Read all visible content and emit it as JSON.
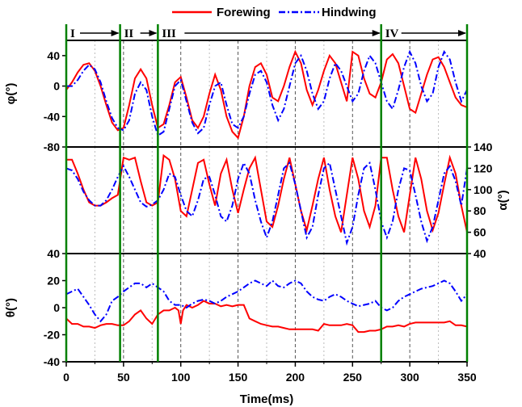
{
  "chart_data": {
    "type": "line",
    "xlabel": "Time(ms)",
    "xlim": [
      0,
      350
    ],
    "xticks": [
      "0",
      "50",
      "100",
      "150",
      "200",
      "250",
      "300",
      "350"
    ],
    "legend": {
      "placement": "top-center",
      "entries": [
        {
          "label": "Forewing",
          "color": "#ff0000",
          "style": "solid"
        },
        {
          "label": "Hindwing",
          "color": "#0000ff",
          "style": "dash-dot"
        }
      ]
    },
    "phases": {
      "labels": [
        "I",
        "II",
        "III",
        "IV"
      ],
      "boundaries_ms": [
        0,
        47,
        80,
        275,
        350
      ],
      "line_color": "#008000"
    },
    "panels": [
      {
        "id": "phi",
        "ylabel": "φ(°)",
        "axis_side": "left",
        "ylim": [
          -80,
          60
        ],
        "yticks": [
          "40",
          "0",
          "-40",
          "-80"
        ],
        "ytick_values": [
          40,
          0,
          -40,
          -80
        ],
        "series": [
          {
            "name": "Forewing",
            "x": [
              0,
              5,
              10,
              15,
              20,
              25,
              30,
              35,
              40,
              45,
              50,
              55,
              60,
              65,
              70,
              75,
              80,
              85,
              90,
              95,
              100,
              105,
              110,
              115,
              120,
              125,
              130,
              135,
              140,
              145,
              150,
              155,
              160,
              165,
              170,
              175,
              180,
              185,
              190,
              195,
              200,
              205,
              210,
              215,
              220,
              225,
              230,
              235,
              240,
              245,
              250,
              255,
              260,
              265,
              270,
              275,
              280,
              285,
              290,
              295,
              300,
              305,
              310,
              315,
              320,
              325,
              330,
              335,
              340,
              345,
              350
            ],
            "y": [
              -5,
              5,
              18,
              28,
              30,
              20,
              0,
              -25,
              -48,
              -58,
              -55,
              -25,
              10,
              22,
              10,
              -25,
              -55,
              -50,
              -25,
              5,
              12,
              -15,
              -45,
              -55,
              -40,
              -10,
              15,
              -5,
              -40,
              -60,
              -68,
              -40,
              0,
              25,
              30,
              15,
              -15,
              -20,
              0,
              25,
              45,
              30,
              -5,
              -25,
              -5,
              20,
              40,
              30,
              5,
              -20,
              45,
              40,
              10,
              -10,
              -15,
              5,
              35,
              42,
              30,
              0,
              -30,
              -35,
              -10,
              15,
              35,
              38,
              25,
              5,
              -15,
              -25,
              -28
            ]
          },
          {
            "name": "Hindwing",
            "x": [
              0,
              5,
              10,
              15,
              20,
              25,
              30,
              35,
              40,
              45,
              50,
              55,
              60,
              65,
              70,
              75,
              80,
              85,
              90,
              95,
              100,
              105,
              110,
              115,
              120,
              125,
              130,
              135,
              140,
              145,
              150,
              155,
              160,
              165,
              170,
              175,
              180,
              185,
              190,
              195,
              200,
              205,
              210,
              215,
              220,
              225,
              230,
              235,
              240,
              245,
              250,
              255,
              260,
              265,
              270,
              275,
              280,
              285,
              290,
              295,
              300,
              305,
              310,
              315,
              320,
              325,
              330,
              335,
              340,
              345,
              350
            ],
            "y": [
              0,
              0,
              8,
              20,
              28,
              22,
              5,
              -20,
              -42,
              -55,
              -58,
              -45,
              -10,
              5,
              -5,
              -40,
              -65,
              -60,
              -30,
              0,
              8,
              -20,
              -48,
              -62,
              -55,
              -25,
              0,
              5,
              -25,
              -50,
              -55,
              -40,
              -10,
              15,
              20,
              5,
              -25,
              -45,
              -30,
              0,
              30,
              40,
              20,
              -10,
              -30,
              -20,
              10,
              30,
              20,
              0,
              -20,
              -10,
              20,
              40,
              30,
              5,
              -20,
              -30,
              -5,
              25,
              45,
              30,
              0,
              -20,
              -10,
              25,
              45,
              35,
              5,
              -20,
              -5
            ]
          }
        ]
      },
      {
        "id": "alpha",
        "ylabel": "α(°)",
        "axis_side": "right",
        "ylim": [
          40,
          140
        ],
        "yticks": [
          "140",
          "120",
          "100",
          "80",
          "60",
          "40"
        ],
        "ytick_values": [
          140,
          120,
          100,
          80,
          60,
          40
        ],
        "series": [
          {
            "name": "Forewing",
            "x": [
              0,
              5,
              10,
              15,
              20,
              25,
              30,
              35,
              40,
              45,
              50,
              55,
              60,
              65,
              70,
              75,
              80,
              85,
              90,
              95,
              100,
              105,
              110,
              115,
              120,
              125,
              130,
              135,
              140,
              145,
              150,
              155,
              160,
              165,
              170,
              175,
              180,
              185,
              190,
              195,
              200,
              205,
              210,
              215,
              220,
              225,
              230,
              235,
              240,
              245,
              250,
              255,
              260,
              265,
              270,
              275,
              280,
              285,
              290,
              295,
              300,
              305,
              310,
              315,
              320,
              325,
              330,
              335,
              340,
              345,
              350
            ],
            "y": [
              128,
              128,
              115,
              100,
              88,
              85,
              85,
              88,
              92,
              95,
              130,
              128,
              130,
              108,
              88,
              85,
              88,
              132,
              128,
              110,
              80,
              75,
              100,
              125,
              128,
              105,
              85,
              115,
              128,
              100,
              78,
              100,
              120,
              130,
              100,
              70,
              65,
              85,
              110,
              130,
              105,
              80,
              62,
              85,
              110,
              130,
              100,
              75,
              60,
              95,
              130,
              110,
              80,
              65,
              85,
              130,
              130,
              100,
              75,
              60,
              95,
              130,
              110,
              80,
              62,
              78,
              105,
              130,
              115,
              85,
              60
            ]
          },
          {
            "name": "Hindwing",
            "x": [
              0,
              5,
              10,
              15,
              20,
              25,
              30,
              35,
              40,
              45,
              50,
              55,
              60,
              65,
              70,
              75,
              80,
              85,
              90,
              95,
              100,
              105,
              110,
              115,
              120,
              125,
              130,
              135,
              140,
              145,
              150,
              155,
              160,
              165,
              170,
              175,
              180,
              185,
              190,
              195,
              200,
              205,
              210,
              215,
              220,
              225,
              230,
              235,
              240,
              245,
              250,
              255,
              260,
              265,
              270,
              275,
              280,
              285,
              290,
              295,
              300,
              305,
              310,
              315,
              320,
              325,
              330,
              335,
              340,
              345,
              350
            ],
            "y": [
              120,
              118,
              110,
              98,
              90,
              85,
              85,
              90,
              100,
              112,
              122,
              112,
              100,
              88,
              84,
              86,
              90,
              100,
              115,
              112,
              95,
              80,
              75,
              90,
              110,
              112,
              95,
              75,
              70,
              85,
              110,
              125,
              115,
              90,
              70,
              55,
              70,
              95,
              120,
              125,
              105,
              80,
              55,
              65,
              95,
              120,
              125,
              100,
              75,
              50,
              65,
              95,
              120,
              125,
              100,
              70,
              55,
              70,
              100,
              120,
              118,
              95,
              70,
              52,
              65,
              90,
              115,
              122,
              108,
              85,
              120
            ]
          }
        ]
      },
      {
        "id": "theta",
        "ylabel": "θ(°)",
        "axis_side": "left",
        "ylim": [
          -40,
          40
        ],
        "yticks": [
          "40",
          "20",
          "0",
          "-20",
          "-40"
        ],
        "ytick_values": [
          40,
          20,
          0,
          -20,
          -40
        ],
        "series": [
          {
            "name": "Forewing",
            "x": [
              0,
              5,
              10,
              15,
              20,
              25,
              30,
              35,
              40,
              45,
              50,
              55,
              60,
              65,
              70,
              75,
              80,
              85,
              90,
              95,
              98,
              100,
              102,
              105,
              110,
              115,
              120,
              125,
              130,
              135,
              140,
              145,
              150,
              155,
              160,
              165,
              170,
              175,
              180,
              185,
              190,
              195,
              200,
              205,
              210,
              215,
              220,
              225,
              230,
              235,
              240,
              245,
              250,
              255,
              260,
              265,
              270,
              275,
              280,
              285,
              290,
              295,
              300,
              305,
              310,
              315,
              320,
              325,
              330,
              335,
              340,
              345,
              350
            ],
            "y": [
              -8,
              -12,
              -12,
              -14,
              -14,
              -15,
              -13,
              -12,
              -12,
              -13,
              -13,
              -10,
              -5,
              -2,
              -8,
              -12,
              -5,
              -2,
              -2,
              0,
              -2,
              -12,
              -2,
              2,
              0,
              2,
              5,
              3,
              3,
              1,
              2,
              1,
              2,
              2,
              -8,
              -10,
              -12,
              -13,
              -14,
              -14,
              -15,
              -16,
              -16,
              -16,
              -16,
              -16,
              -17,
              -12,
              -13,
              -13,
              -13,
              -12,
              -13,
              -18,
              -18,
              -17,
              -17,
              -16,
              -14,
              -14,
              -13,
              -14,
              -12,
              -11,
              -11,
              -11,
              -11,
              -11,
              -11,
              -10,
              -13,
              -13,
              -14
            ]
          },
          {
            "name": "Hindwing",
            "x": [
              0,
              5,
              10,
              15,
              20,
              25,
              30,
              35,
              40,
              45,
              50,
              55,
              60,
              65,
              70,
              75,
              80,
              85,
              90,
              95,
              100,
              105,
              110,
              115,
              120,
              125,
              130,
              135,
              140,
              145,
              150,
              155,
              160,
              165,
              170,
              175,
              180,
              185,
              190,
              195,
              200,
              205,
              210,
              215,
              220,
              225,
              230,
              235,
              240,
              245,
              250,
              255,
              260,
              265,
              270,
              275,
              280,
              285,
              290,
              295,
              300,
              305,
              310,
              315,
              320,
              325,
              330,
              335,
              340,
              345,
              350
            ],
            "y": [
              10,
              12,
              14,
              8,
              2,
              -5,
              -10,
              -5,
              5,
              8,
              12,
              15,
              18,
              18,
              15,
              18,
              15,
              12,
              5,
              2,
              2,
              0,
              3,
              5,
              6,
              5,
              3,
              5,
              8,
              10,
              12,
              15,
              18,
              20,
              18,
              16,
              20,
              16,
              15,
              18,
              20,
              18,
              12,
              8,
              6,
              5,
              8,
              10,
              8,
              5,
              3,
              1,
              2,
              3,
              5,
              0,
              -2,
              0,
              5,
              8,
              10,
              12,
              14,
              15,
              16,
              18,
              20,
              18,
              12,
              5,
              10
            ]
          }
        ]
      }
    ]
  }
}
